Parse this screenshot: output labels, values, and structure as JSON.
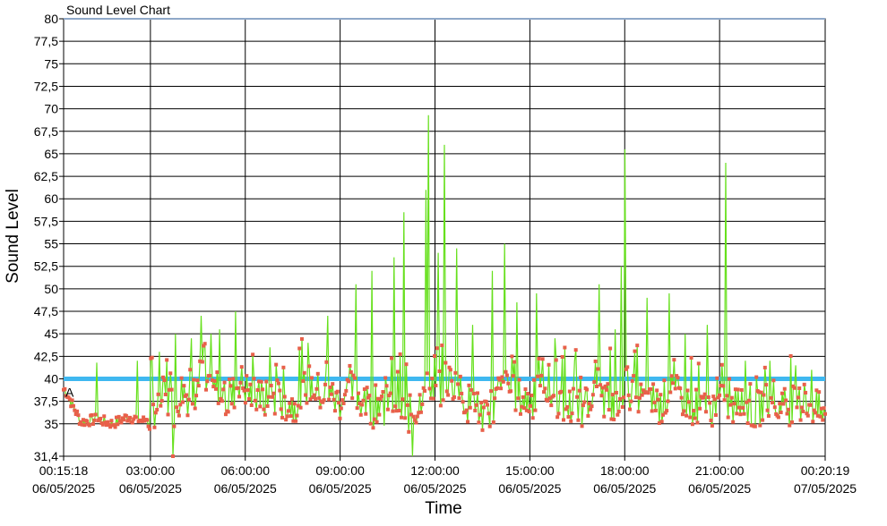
{
  "chart_data": {
    "type": "line",
    "title": "Sound Level Chart",
    "xlabel": "Time",
    "ylabel": "Sound Level",
    "ylim": [
      31.4,
      80
    ],
    "y_ticks": [
      "31,4",
      "35",
      "37,5",
      "40",
      "42,5",
      "45",
      "47,5",
      "50",
      "52,5",
      "55",
      "57,5",
      "60",
      "62,5",
      "65",
      "67,5",
      "70",
      "72,5",
      "75",
      "77,5",
      "80"
    ],
    "y_tick_values": [
      31.4,
      35,
      37.5,
      40,
      42.5,
      45,
      47.5,
      50,
      52.5,
      55,
      57.5,
      60,
      62.5,
      65,
      67.5,
      70,
      72.5,
      75,
      77.5,
      80
    ],
    "x_range_hours": [
      0.255,
      24.339
    ],
    "x_ticks": [
      {
        "time": "00:15:18",
        "date": "06/05/2025"
      },
      {
        "time": "03:00:00",
        "date": "06/05/2025"
      },
      {
        "time": "06:00:00",
        "date": "06/05/2025"
      },
      {
        "time": "09:00:00",
        "date": "06/05/2025"
      },
      {
        "time": "12:00:00",
        "date": "06/05/2025"
      },
      {
        "time": "15:00:00",
        "date": "06/05/2025"
      },
      {
        "time": "18:00:00",
        "date": "06/05/2025"
      },
      {
        "time": "21:00:00",
        "date": "06/05/2025"
      },
      {
        "time": "00:20:19",
        "date": "07/05/2025"
      }
    ],
    "x_tick_hours": [
      0.255,
      3,
      6,
      9,
      12,
      15,
      18,
      21,
      24.339
    ],
    "grid": true,
    "reference_lines": [
      {
        "value": 40,
        "color": "#3fb8f0"
      },
      {
        "value": 80,
        "color": "#8fa8c8"
      }
    ],
    "annotation": {
      "text": "A",
      "y": 38.5
    },
    "series": [
      {
        "color": "#66e01c",
        "marker_color": "#e8604a",
        "x_hours": [
          0.3,
          0.8,
          1.3,
          1.8,
          2.3,
          2.8,
          3.2,
          3.5,
          3.8,
          4.0,
          4.3,
          4.6,
          4.9,
          5.2,
          5.5,
          5.8,
          6.1,
          6.5,
          7.0,
          7.5,
          8.0,
          8.5,
          9.0,
          9.3,
          9.6,
          10.0,
          10.4,
          10.8,
          11.2,
          11.5,
          11.7,
          11.9,
          12.1,
          12.3,
          12.6,
          13.0,
          13.4,
          13.7,
          14.0,
          14.3,
          14.6,
          15.0,
          15.4,
          15.8,
          16.2,
          16.6,
          17.0,
          17.4,
          17.8,
          18.0,
          18.2,
          18.6,
          19.0,
          19.4,
          19.8,
          20.2,
          20.6,
          21.0,
          21.3,
          21.7,
          22.1,
          22.5,
          22.9,
          23.3,
          23.7,
          24.1,
          24.3
        ],
        "values": [
          38.8,
          35.2,
          35.5,
          35.0,
          35.8,
          35.3,
          37.0,
          38.5,
          36.5,
          39.0,
          37.5,
          40.5,
          38.0,
          39.5,
          37.2,
          40.0,
          38.5,
          37.5,
          38.0,
          37.0,
          39.5,
          38.0,
          37.5,
          39.0,
          38.0,
          36.5,
          38.5,
          37.5,
          36.0,
          37.0,
          41.0,
          39.5,
          38.0,
          40.0,
          39.5,
          37.5,
          36.5,
          35.0,
          38.5,
          39.0,
          38.0,
          37.5,
          38.5,
          38.0,
          37.0,
          36.5,
          37.5,
          38.0,
          36.5,
          40.0,
          38.5,
          37.5,
          36.5,
          38.5,
          38.0,
          37.0,
          36.5,
          37.5,
          36.5,
          37.5,
          36.0,
          38.0,
          36.5,
          37.0,
          37.5,
          36.5,
          36.0
        ],
        "peaks": [
          {
            "x": 1.3,
            "y": 41.8
          },
          {
            "x": 2.6,
            "y": 42.0
          },
          {
            "x": 3.3,
            "y": 43.0
          },
          {
            "x": 3.8,
            "y": 45.0
          },
          {
            "x": 4.3,
            "y": 44.5
          },
          {
            "x": 4.6,
            "y": 47.0
          },
          {
            "x": 4.9,
            "y": 45.0
          },
          {
            "x": 5.2,
            "y": 45.5
          },
          {
            "x": 5.7,
            "y": 47.5
          },
          {
            "x": 6.8,
            "y": 43.5
          },
          {
            "x": 8.0,
            "y": 44.0
          },
          {
            "x": 8.6,
            "y": 47.0
          },
          {
            "x": 9.5,
            "y": 50.5
          },
          {
            "x": 10.0,
            "y": 52.0
          },
          {
            "x": 10.4,
            "y": 56.0
          },
          {
            "x": 10.7,
            "y": 53.5
          },
          {
            "x": 11.0,
            "y": 58.5
          },
          {
            "x": 11.3,
            "y": 50.0
          },
          {
            "x": 11.7,
            "y": 61.0
          },
          {
            "x": 11.8,
            "y": 69.3
          },
          {
            "x": 12.1,
            "y": 54.0
          },
          {
            "x": 12.3,
            "y": 66.0
          },
          {
            "x": 12.7,
            "y": 54.5
          },
          {
            "x": 13.2,
            "y": 46.0
          },
          {
            "x": 13.8,
            "y": 52.0
          },
          {
            "x": 14.2,
            "y": 55.0
          },
          {
            "x": 14.6,
            "y": 48.5
          },
          {
            "x": 15.2,
            "y": 49.5
          },
          {
            "x": 15.8,
            "y": 44.5
          },
          {
            "x": 16.4,
            "y": 42.0
          },
          {
            "x": 17.2,
            "y": 50.5
          },
          {
            "x": 17.7,
            "y": 45.5
          },
          {
            "x": 17.9,
            "y": 52.5
          },
          {
            "x": 18.0,
            "y": 65.5
          },
          {
            "x": 18.7,
            "y": 49.0
          },
          {
            "x": 19.4,
            "y": 49.5
          },
          {
            "x": 19.9,
            "y": 45.0
          },
          {
            "x": 20.6,
            "y": 46.0
          },
          {
            "x": 21.2,
            "y": 64.0
          },
          {
            "x": 21.8,
            "y": 42.0
          },
          {
            "x": 22.6,
            "y": 42.0
          },
          {
            "x": 23.4,
            "y": 41.5
          },
          {
            "x": 23.9,
            "y": 41.0
          }
        ],
        "dips": [
          {
            "x": 3.7,
            "y": 31.4
          },
          {
            "x": 10.4,
            "y": 34.8
          },
          {
            "x": 11.3,
            "y": 31.4
          },
          {
            "x": 13.5,
            "y": 34.3
          }
        ]
      }
    ]
  }
}
